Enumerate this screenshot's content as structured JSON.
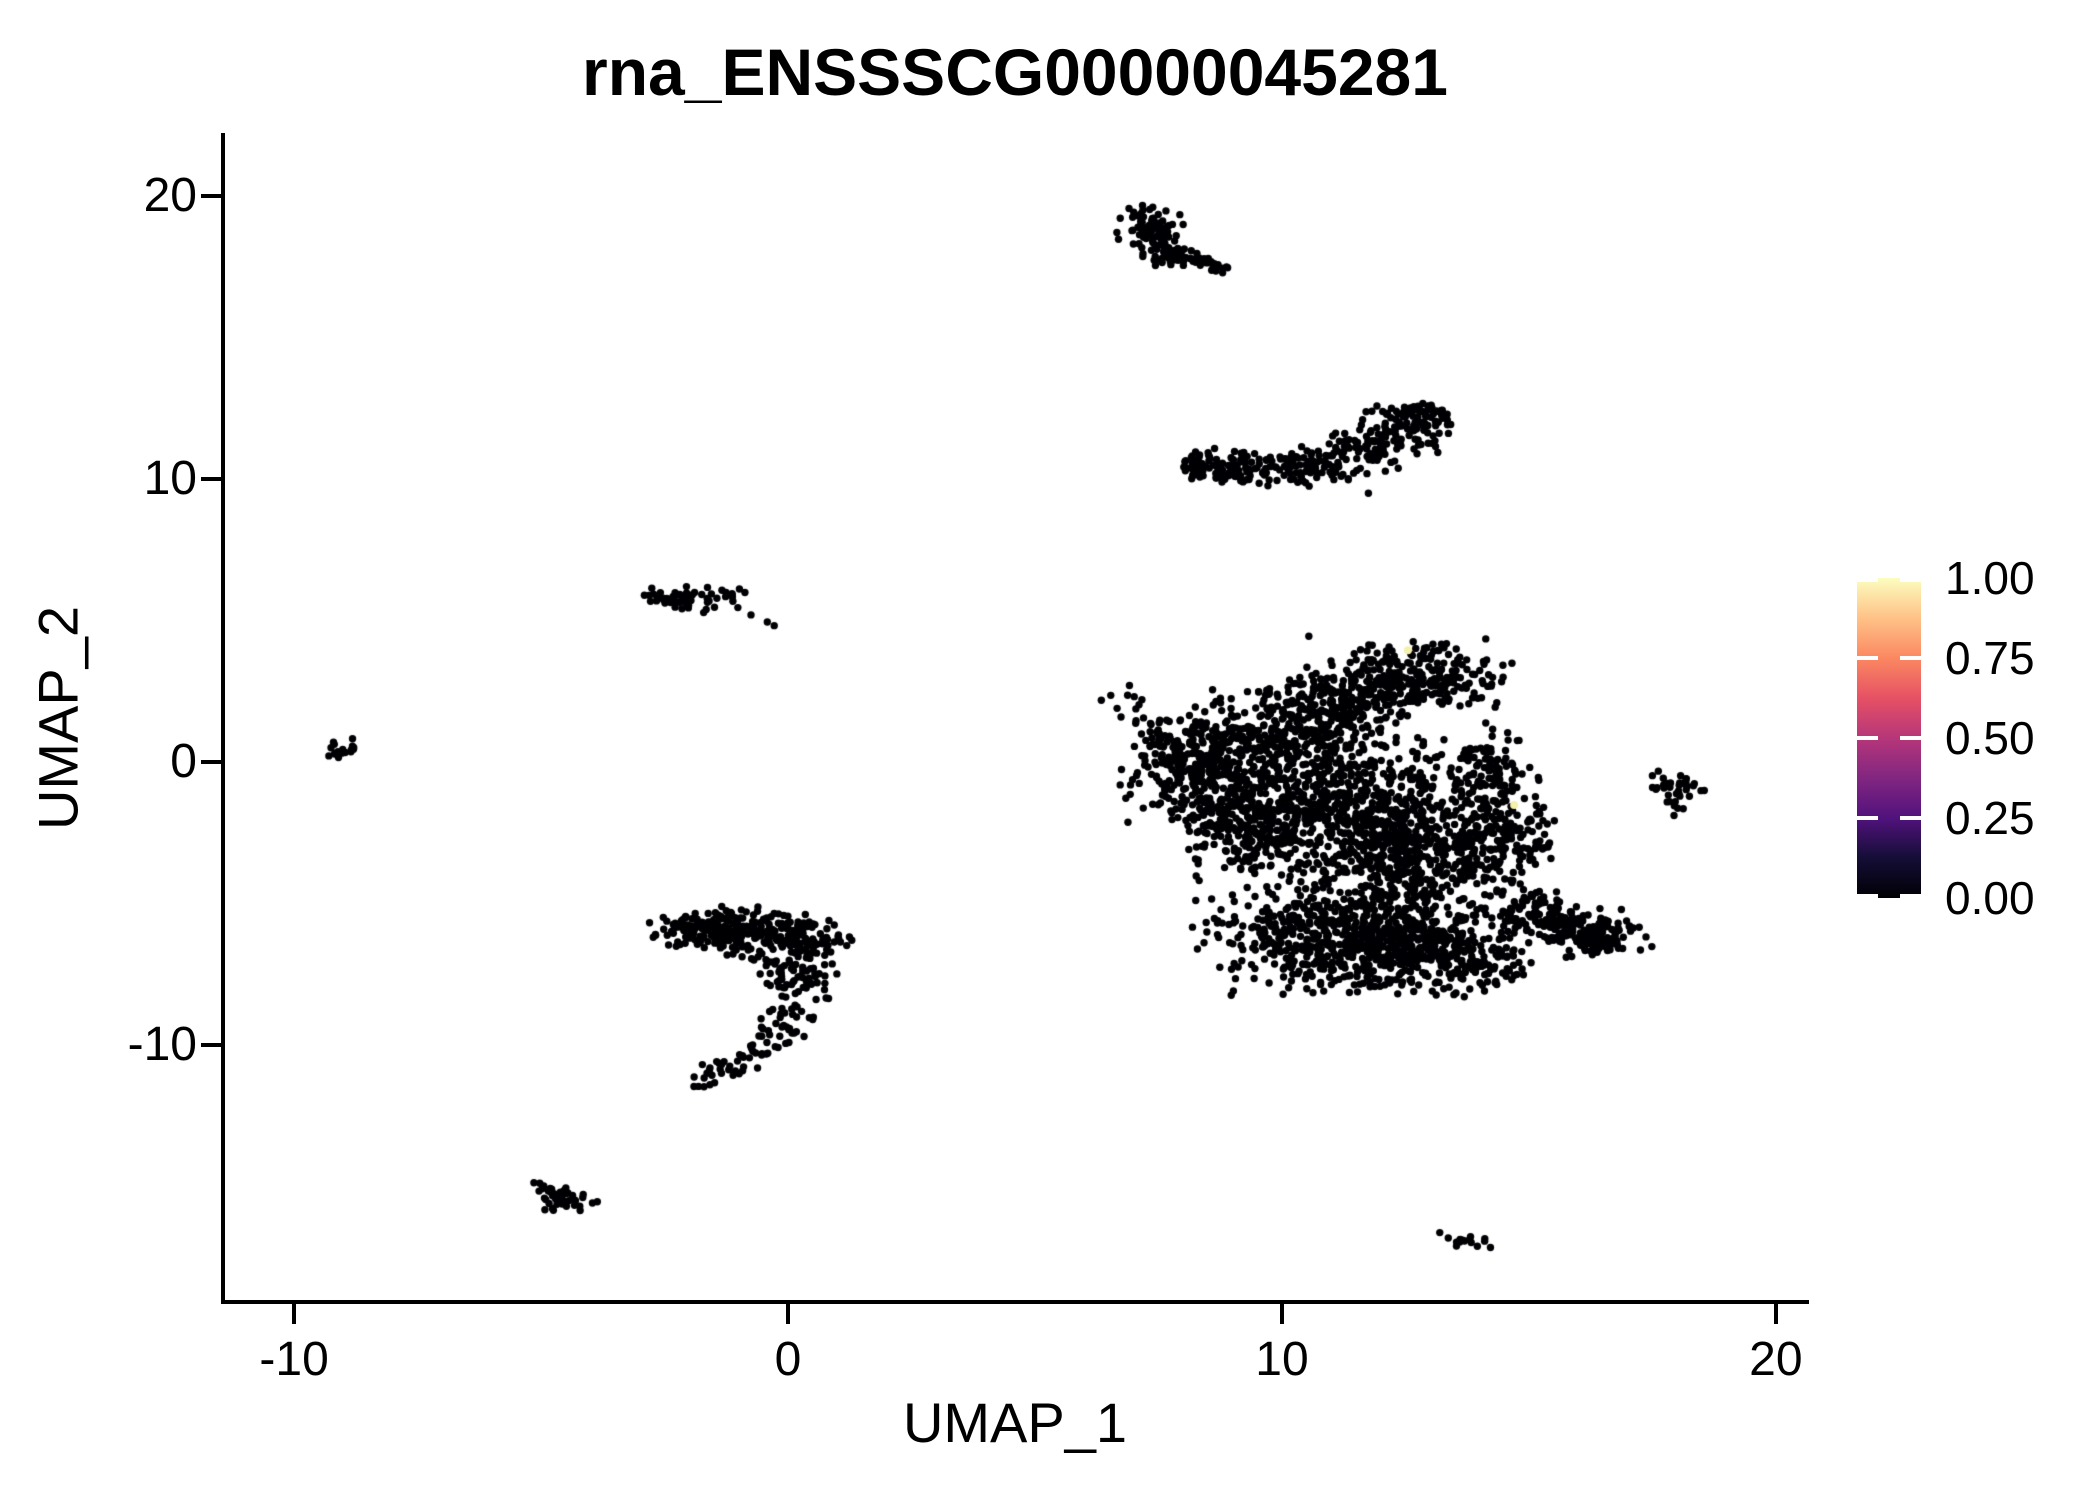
{
  "figure": {
    "background": "#FFFFFF"
  },
  "chart_data": {
    "type": "scatter",
    "title": "rna_ENSSSCG00000045281",
    "xlabel": "UMAP_1",
    "ylabel": "UMAP_2",
    "x_range": [
      -11.44,
      20.63
    ],
    "y_range": [
      -19.08,
      22.23
    ],
    "x_ticks": [
      {
        "value": -10,
        "label": "-10"
      },
      {
        "value": 0,
        "label": "0"
      },
      {
        "value": 10,
        "label": "10"
      },
      {
        "value": 20,
        "label": "20"
      }
    ],
    "y_ticks": [
      {
        "value": 20,
        "label": "20"
      },
      {
        "value": 10,
        "label": "10"
      },
      {
        "value": 0,
        "label": "0"
      },
      {
        "value": -10,
        "label": "-10"
      }
    ],
    "grid": false,
    "legend_position": "right",
    "point_color": "#000004",
    "point_radius_px": 3.7,
    "colorbar": {
      "palette": "magma",
      "gradient_stops": [
        "#000004",
        "#140E36",
        "#51127C",
        "#822681",
        "#B63679",
        "#E65164",
        "#FB8861",
        "#FEC287",
        "#FCFDBF"
      ],
      "tick_color": "#FFFFFF",
      "breaks": [
        {
          "t": 1.0,
          "label": "1.00"
        },
        {
          "t": 0.75,
          "label": "0.75"
        },
        {
          "t": 0.5,
          "label": "0.50"
        },
        {
          "t": 0.25,
          "label": "0.25"
        },
        {
          "t": 0.0,
          "label": "0.00"
        }
      ]
    },
    "seed": 20240515,
    "clusters": [
      {
        "name": "top-small",
        "blobs": [
          {
            "cx": 7.35,
            "cy": 18.95,
            "sx": 0.3,
            "sy": 0.33,
            "n": 75
          },
          {
            "cx": 7.62,
            "cy": 18.15,
            "sx": 0.26,
            "sy": 0.3,
            "n": 48
          }
        ],
        "lines": [
          {
            "x1": 7.95,
            "y1": 17.95,
            "x2": 8.85,
            "y2": 17.3,
            "w": 0.13,
            "n": 30
          }
        ]
      },
      {
        "name": "crescent",
        "path": {
          "points": [
            [
              8.0,
              10.55
            ],
            [
              9.0,
              10.42
            ],
            [
              10.0,
              10.38
            ],
            [
              10.8,
              10.5
            ],
            [
              11.5,
              10.78
            ],
            [
              12.15,
              11.3
            ],
            [
              12.65,
              12.0
            ],
            [
              13.02,
              12.62
            ]
          ],
          "widths": [
            0.28,
            0.3,
            0.32,
            0.35,
            0.45,
            0.5,
            0.45,
            0.28
          ],
          "n": 380
        },
        "extras": [
          [
            10.55,
            9.75
          ],
          [
            11.75,
            9.5
          ],
          [
            9.9,
            9.95
          ],
          [
            11.05,
            9.98
          ]
        ]
      },
      {
        "name": "left-small",
        "blobs": [
          {
            "cx": -1.95,
            "cy": 5.78,
            "sx": 0.48,
            "sy": 0.2,
            "n": 58,
            "rot": -0.12
          }
        ],
        "extras": [
          [
            -0.75,
            5.2
          ],
          [
            -0.42,
            4.95
          ],
          [
            -0.28,
            4.82
          ]
        ]
      },
      {
        "name": "far-left-tiny",
        "blobs": [
          {
            "cx": -9.05,
            "cy": 0.45,
            "sx": 0.22,
            "sy": 0.15,
            "n": 18,
            "rot": 0.45
          }
        ]
      },
      {
        "name": "right-small",
        "blobs": [
          {
            "cx": 18.0,
            "cy": -0.78,
            "sx": 0.27,
            "sy": 0.24,
            "n": 30
          },
          {
            "cx": 17.92,
            "cy": -1.45,
            "sx": 0.1,
            "sy": 0.22,
            "n": 8
          }
        ],
        "extras": [
          [
            17.5,
            -0.48
          ],
          [
            17.62,
            -0.32
          ]
        ]
      },
      {
        "name": "bottom-left-hook",
        "blobs": [
          {
            "cx": -1.7,
            "cy": -5.85,
            "sx": 0.55,
            "sy": 0.34,
            "n": 130
          },
          {
            "cx": -0.6,
            "cy": -6.05,
            "sx": 0.6,
            "sy": 0.42,
            "n": 130
          },
          {
            "cx": 0.35,
            "cy": -6.3,
            "sx": 0.45,
            "sy": 0.42,
            "n": 85
          },
          {
            "cx": 0.1,
            "cy": -7.5,
            "sx": 0.32,
            "sy": 0.38,
            "n": 45
          }
        ],
        "path": {
          "points": [
            [
              0.45,
              -7.2
            ],
            [
              0.32,
              -8.4
            ],
            [
              -0.15,
              -9.55
            ],
            [
              -0.95,
              -10.45
            ],
            [
              -1.6,
              -11.05
            ],
            [
              -1.85,
              -11.55
            ]
          ],
          "widths": [
            0.45,
            0.33,
            0.28,
            0.26,
            0.22,
            0.16
          ],
          "n": 95
        }
      },
      {
        "name": "bottom-far-left",
        "blobs": [
          {
            "cx": -4.85,
            "cy": -15.15,
            "sx": 0.26,
            "sy": 0.17,
            "n": 16,
            "rot": -0.5
          },
          {
            "cx": -4.4,
            "cy": -15.35,
            "sx": 0.26,
            "sy": 0.2,
            "n": 16,
            "rot": 0.4
          },
          {
            "cx": -4.62,
            "cy": -15.7,
            "sx": 0.18,
            "sy": 0.15,
            "n": 10
          }
        ]
      },
      {
        "name": "bottom-small",
        "blobs": [
          {
            "cx": 13.75,
            "cy": -16.9,
            "sx": 0.28,
            "sy": 0.16,
            "n": 16,
            "rot": -0.5
          }
        ]
      },
      {
        "name": "main",
        "blobs": [
          {
            "cx": 12.55,
            "cy": 3.05,
            "sx": 0.95,
            "sy": 0.62,
            "n": 270
          },
          {
            "cx": 11.25,
            "cy": 2.15,
            "sx": 0.75,
            "sy": 0.5,
            "n": 140
          },
          {
            "cx": 10.2,
            "cy": 0.9,
            "sx": 1.15,
            "sy": 0.75,
            "n": 290
          },
          {
            "cx": 8.4,
            "cy": -0.35,
            "sx": 0.78,
            "sy": 0.95,
            "n": 330
          },
          {
            "cx": 9.4,
            "cy": -2.3,
            "sx": 0.68,
            "sy": 0.88,
            "n": 250
          },
          {
            "cx": 11.4,
            "cy": -1.4,
            "sx": 1.28,
            "sy": 1.05,
            "n": 500
          },
          {
            "cx": 12.5,
            "cy": -3.4,
            "sx": 1.05,
            "sy": 0.95,
            "n": 440
          },
          {
            "cx": 11.2,
            "cy": -6.2,
            "sx": 1.3,
            "sy": 0.9,
            "n": 600
          },
          {
            "cx": 13.3,
            "cy": -6.7,
            "sx": 0.88,
            "sy": 0.68,
            "n": 300
          },
          {
            "cx": 14.2,
            "cy": -0.4,
            "sx": 0.48,
            "sy": 0.78,
            "n": 115
          },
          {
            "cx": 14.45,
            "cy": -2.7,
            "sx": 0.55,
            "sy": 0.82,
            "n": 145
          },
          {
            "cx": 16.35,
            "cy": -6.15,
            "sx": 0.5,
            "sy": 0.42,
            "n": 95
          }
        ],
        "lines": [
          {
            "x1": 14.7,
            "y1": -4.9,
            "x2": 16.4,
            "y2": -6.3,
            "w": 0.42,
            "n": 150
          },
          {
            "x1": 6.45,
            "y1": 2.55,
            "x2": 7.95,
            "y2": 0.7,
            "w": 0.28,
            "n": 26
          }
        ]
      }
    ],
    "highlight_points": [
      {
        "x": 12.55,
        "y": 3.95,
        "value": 1.0,
        "color": "#F5F0AB"
      },
      {
        "x": 14.7,
        "y": -1.52,
        "value": 1.0,
        "color": "#F5F0AB"
      }
    ]
  }
}
